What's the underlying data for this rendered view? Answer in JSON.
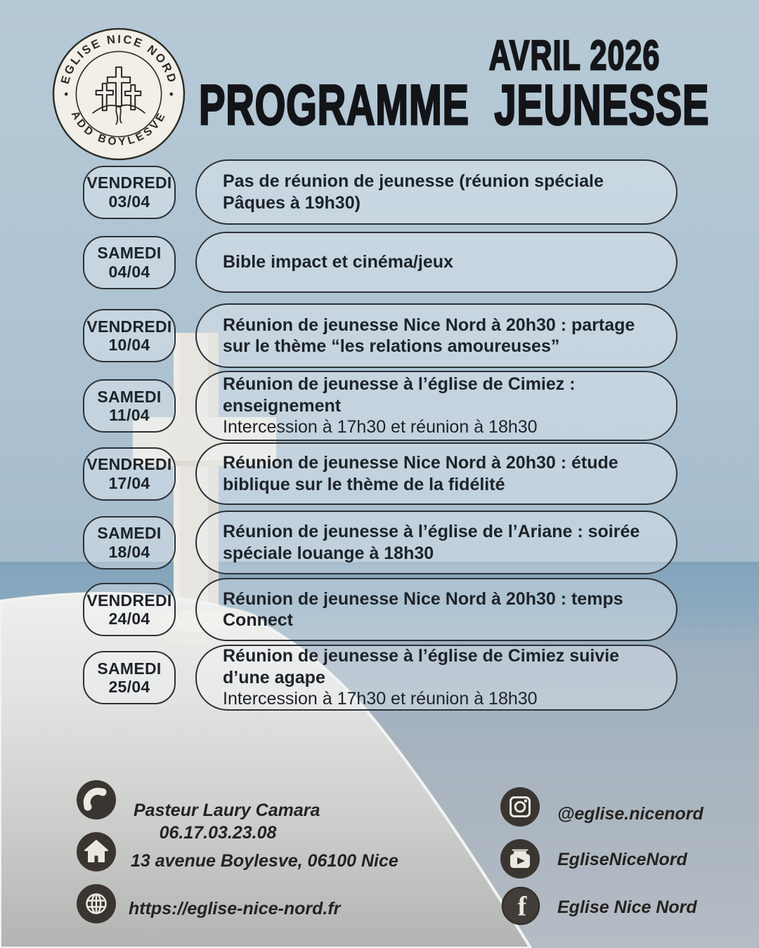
{
  "header": {
    "month_label": "AVRIL 2026",
    "title": "PROGRAMME JEUNESSE"
  },
  "logo": {
    "top_text": "EGLISE NICE NORD",
    "bottom_text": "ADD BOYLESVE",
    "center_symbol": "three-crosses-on-hill-icon"
  },
  "schedule": [
    {
      "day": "VENDREDI",
      "date": "03/04",
      "title": "Pas de réunion de jeunesse (réunion spéciale Pâques à 19h30)",
      "subtitle": ""
    },
    {
      "day": "SAMEDI",
      "date": "04/04",
      "title": "Bible impact et cinéma/jeux",
      "subtitle": ""
    },
    {
      "day": "VENDREDI",
      "date": "10/04",
      "title": "Réunion de jeunesse Nice Nord à 20h30 : partage sur le thème “les relations amoureuses”",
      "subtitle": ""
    },
    {
      "day": "SAMEDI",
      "date": "11/04",
      "title": "Réunion de jeunesse à l’église de Cimiez : enseignement",
      "subtitle": "Intercession à 17h30 et réunion à 18h30"
    },
    {
      "day": "VENDREDI",
      "date": "17/04",
      "title": "Réunion de jeunesse Nice Nord à 20h30 : étude biblique sur le thème de la fidélité",
      "subtitle": ""
    },
    {
      "day": "SAMEDI",
      "date": "18/04",
      "title": "Réunion de jeunesse à l’église de l’Ariane : soirée spéciale louange à 18h30",
      "subtitle": ""
    },
    {
      "day": "VENDREDI",
      "date": "24/04",
      "title": "Réunion de jeunesse Nice Nord à 20h30 : temps Connect",
      "subtitle": ""
    },
    {
      "day": "SAMEDI",
      "date": "25/04",
      "title": "Réunion de jeunesse à l’église de Cimiez suivie d’une agape",
      "subtitle": "Intercession à 17h30 et réunion à 18h30"
    }
  ],
  "contact": {
    "phone_icon": "phone-icon",
    "pastor_name": "Pasteur Laury Camara",
    "phone_number": "06.17.03.23.08",
    "home_icon": "home-icon",
    "address": "13 avenue Boylesve, 06100 Nice",
    "globe_icon": "globe-icon",
    "website": "https://eglise-nice-nord.fr"
  },
  "social": [
    {
      "network": "instagram",
      "icon": "instagram-icon",
      "handle": "@eglise.nicenord"
    },
    {
      "network": "youtube",
      "icon": "youtube-icon",
      "handle": "EgliseNiceNord"
    },
    {
      "network": "facebook",
      "icon": "facebook-icon",
      "handle": "Eglise Nice Nord"
    }
  ],
  "colors": {
    "sky": "#b2c5d3",
    "sea": "#86a7bd",
    "rock_light": "#ededeb",
    "rock_dark": "#b2b4b1",
    "pill_outline": "#2c3136",
    "pill_fill_tint": "#f3f7fa",
    "text_dark": "#1d2329",
    "icon_circle": "#3a3530",
    "icon_glyph": "#ece8df",
    "logo_cream": "#f2efe8"
  }
}
